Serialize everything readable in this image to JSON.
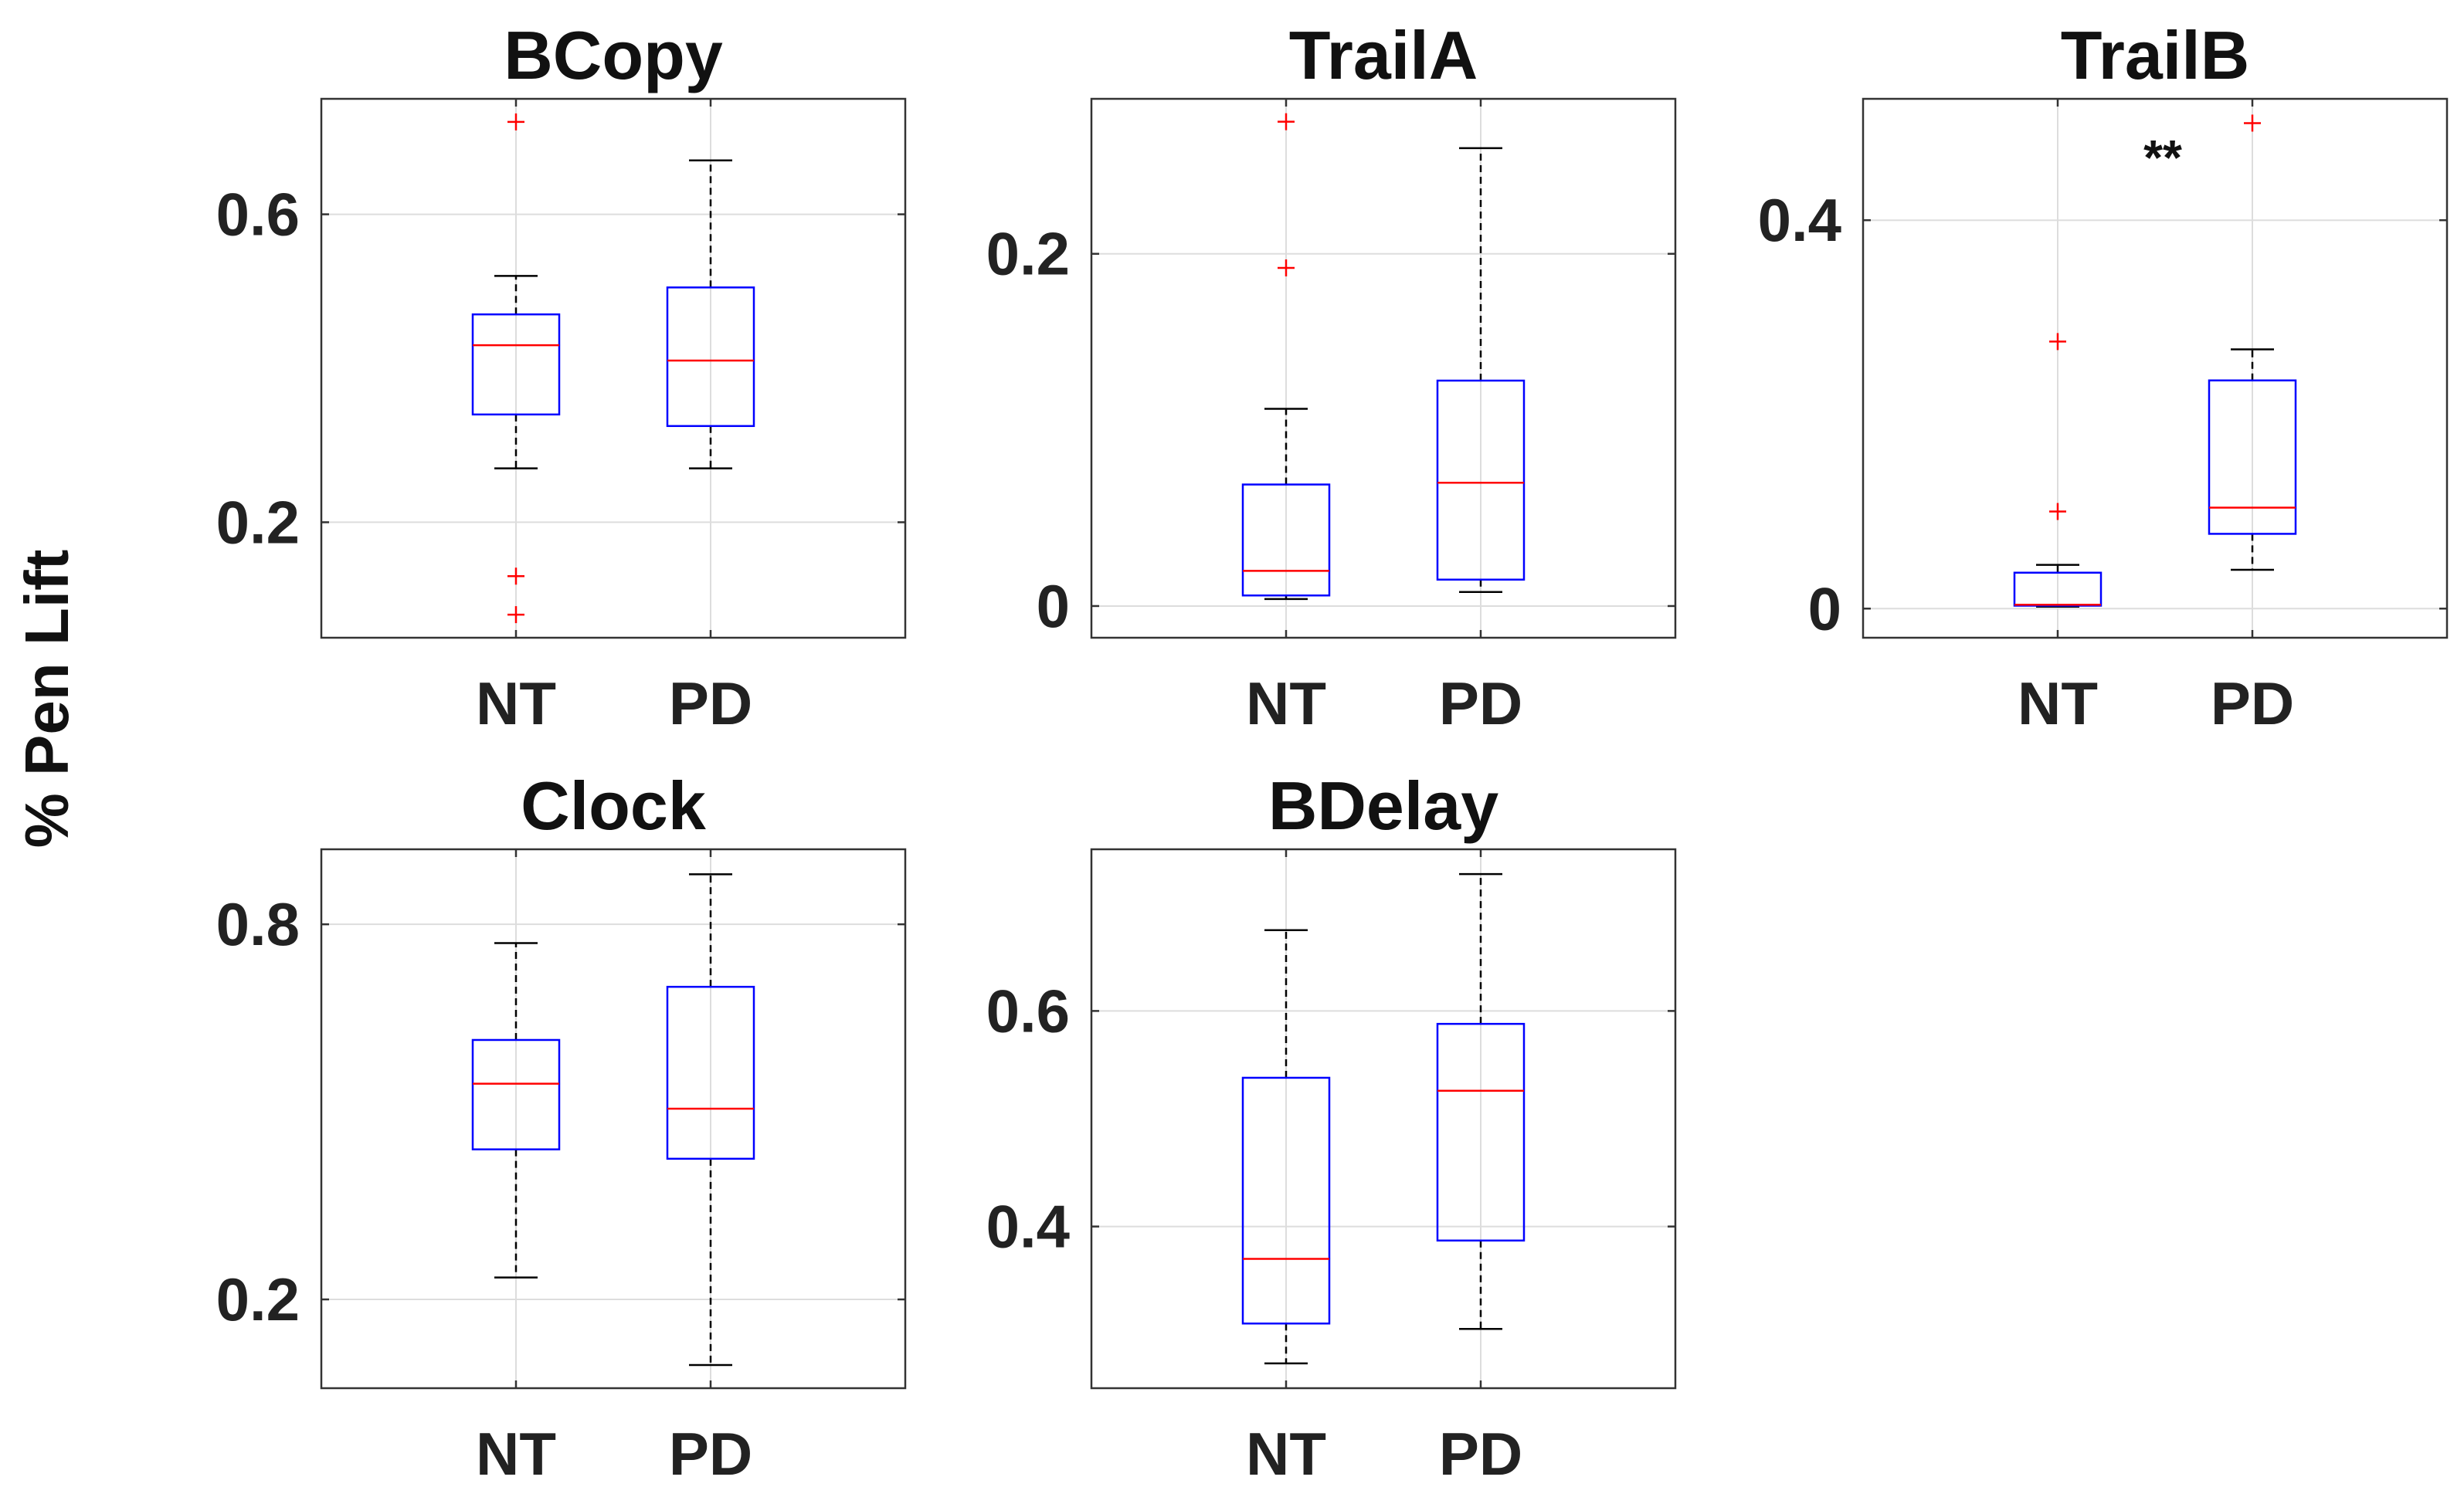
{
  "figure": {
    "ylabel": "% Pen Lift"
  },
  "chart_data": [
    {
      "type": "box",
      "title": "BCopy",
      "categories": [
        "NT",
        "PD"
      ],
      "ylim": [
        0.05,
        0.75
      ],
      "yticks": [
        0.2,
        0.6
      ],
      "ytick_labels": [
        "0.2",
        "0.6"
      ],
      "colors": {
        "box": "#0000ff",
        "median": "#ff0000",
        "whisker": "#000000",
        "outlier": "#ff0000",
        "grid": "#dddddd"
      },
      "boxes": [
        {
          "category": "NT",
          "whisker_low": 0.27,
          "q1": 0.34,
          "median": 0.43,
          "q3": 0.47,
          "whisker_high": 0.52,
          "outliers": [
            0.72,
            0.13,
            0.08
          ]
        },
        {
          "category": "PD",
          "whisker_low": 0.27,
          "q1": 0.325,
          "median": 0.41,
          "q3": 0.505,
          "whisker_high": 0.67,
          "outliers": []
        }
      ],
      "annotation": ""
    },
    {
      "type": "box",
      "title": "TrailA",
      "categories": [
        "NT",
        "PD"
      ],
      "ylim": [
        -0.018,
        0.288
      ],
      "yticks": [
        0,
        0.2
      ],
      "ytick_labels": [
        "0",
        "0.2"
      ],
      "colors": {
        "box": "#0000ff",
        "median": "#ff0000",
        "whisker": "#000000",
        "outlier": "#ff0000",
        "grid": "#dddddd"
      },
      "boxes": [
        {
          "category": "NT",
          "whisker_low": 0.004,
          "q1": 0.006,
          "median": 0.02,
          "q3": 0.069,
          "whisker_high": 0.112,
          "outliers": [
            0.275,
            0.192
          ]
        },
        {
          "category": "PD",
          "whisker_low": 0.008,
          "q1": 0.015,
          "median": 0.07,
          "q3": 0.128,
          "whisker_high": 0.26,
          "outliers": []
        }
      ],
      "annotation": ""
    },
    {
      "type": "box",
      "title": "TrailB",
      "categories": [
        "NT",
        "PD"
      ],
      "ylim": [
        -0.03,
        0.525
      ],
      "yticks": [
        0,
        0.4
      ],
      "ytick_labels": [
        "0",
        "0.4"
      ],
      "colors": {
        "box": "#0000ff",
        "median": "#ff0000",
        "whisker": "#000000",
        "outlier": "#ff0000",
        "grid": "#dddddd"
      },
      "boxes": [
        {
          "category": "NT",
          "whisker_low": 0.002,
          "q1": 0.003,
          "median": 0.004,
          "q3": 0.037,
          "whisker_high": 0.045,
          "outliers": [
            0.275,
            0.1
          ]
        },
        {
          "category": "PD",
          "whisker_low": 0.04,
          "q1": 0.077,
          "median": 0.104,
          "q3": 0.235,
          "whisker_high": 0.267,
          "outliers": [
            0.5
          ]
        }
      ],
      "annotation": "**"
    },
    {
      "type": "box",
      "title": "Clock",
      "categories": [
        "NT",
        "PD"
      ],
      "ylim": [
        0.058,
        0.92
      ],
      "yticks": [
        0.2,
        0.8
      ],
      "ytick_labels": [
        "0.2",
        "0.8"
      ],
      "colors": {
        "box": "#0000ff",
        "median": "#ff0000",
        "whisker": "#000000",
        "outlier": "#ff0000",
        "grid": "#dddddd"
      },
      "boxes": [
        {
          "category": "NT",
          "whisker_low": 0.235,
          "q1": 0.44,
          "median": 0.545,
          "q3": 0.615,
          "whisker_high": 0.77,
          "outliers": []
        },
        {
          "category": "PD",
          "whisker_low": 0.095,
          "q1": 0.425,
          "median": 0.505,
          "q3": 0.7,
          "whisker_high": 0.88,
          "outliers": []
        }
      ],
      "annotation": ""
    },
    {
      "type": "box",
      "title": "BDelay",
      "categories": [
        "NT",
        "PD"
      ],
      "ylim": [
        0.25,
        0.75
      ],
      "yticks": [
        0.4,
        0.6
      ],
      "ytick_labels": [
        "0.4",
        "0.6"
      ],
      "colors": {
        "box": "#0000ff",
        "median": "#ff0000",
        "whisker": "#000000",
        "outlier": "#ff0000",
        "grid": "#dddddd"
      },
      "boxes": [
        {
          "category": "NT",
          "whisker_low": 0.273,
          "q1": 0.31,
          "median": 0.37,
          "q3": 0.538,
          "whisker_high": 0.675,
          "outliers": []
        },
        {
          "category": "PD",
          "whisker_low": 0.305,
          "q1": 0.387,
          "median": 0.526,
          "q3": 0.588,
          "whisker_high": 0.727,
          "outliers": []
        }
      ],
      "annotation": ""
    }
  ]
}
